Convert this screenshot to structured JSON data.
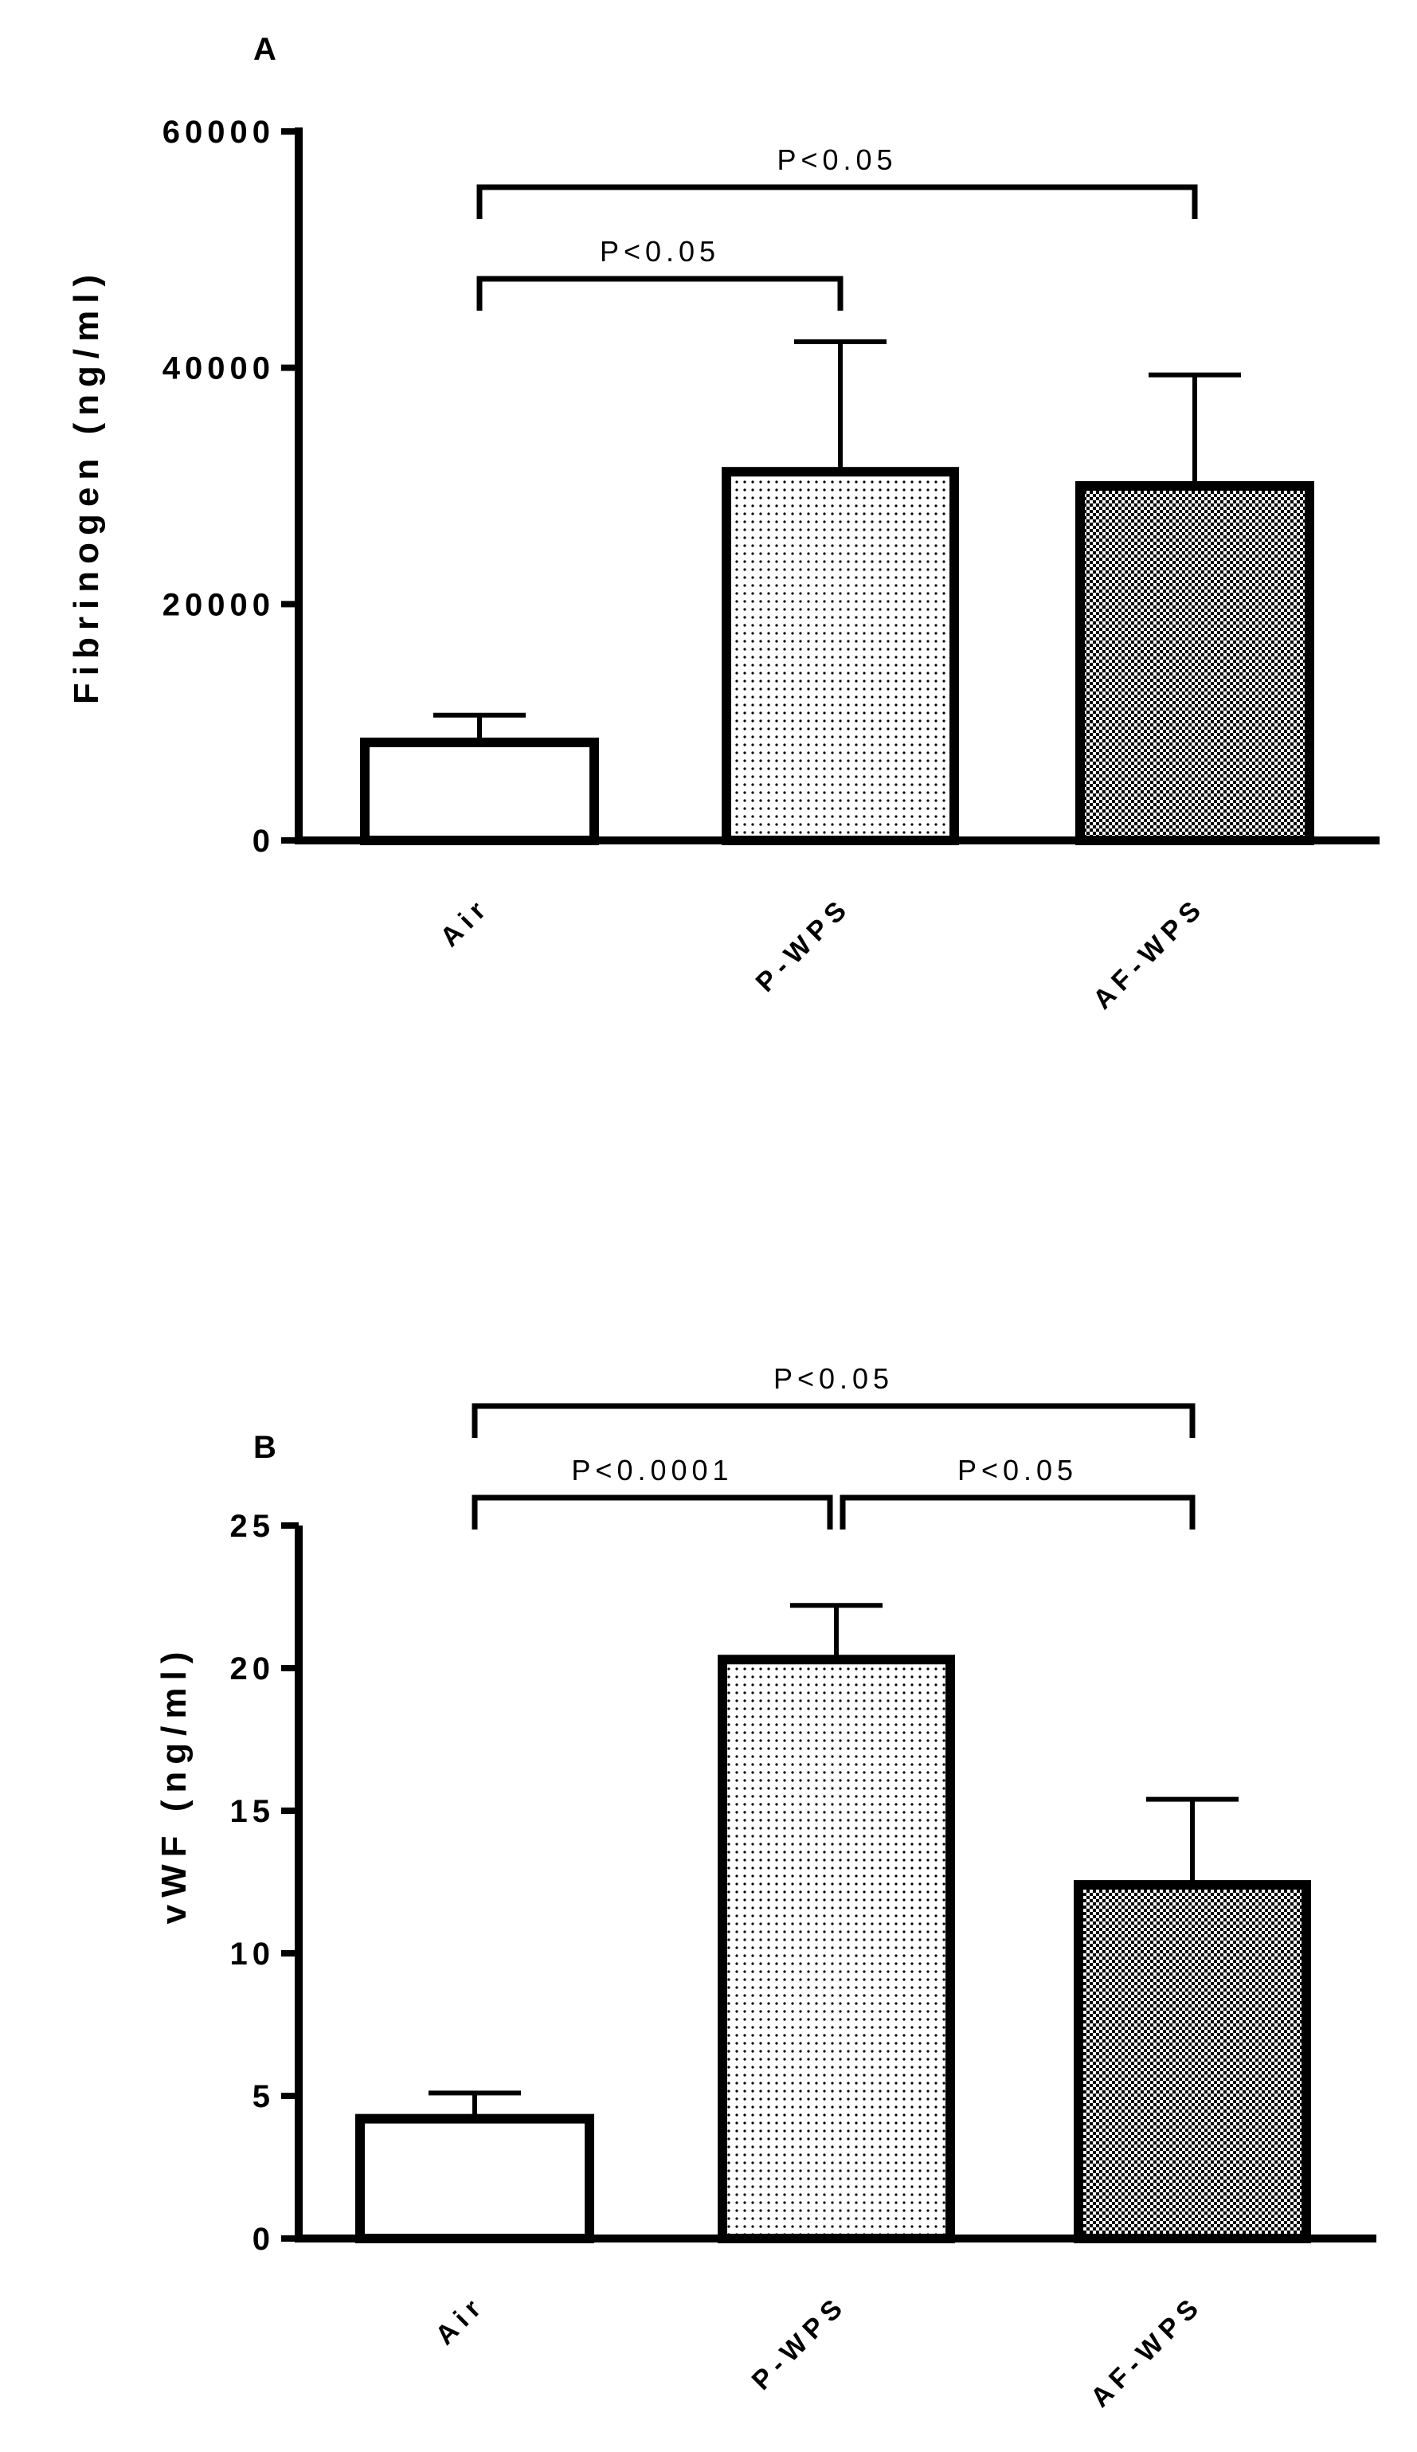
{
  "chart_data": [
    {
      "panel": "A",
      "type": "bar",
      "ylabel": "Fibrinogen (ng/ml)",
      "xlabel": "",
      "categories": [
        "Air",
        "P-WPS",
        "AF-WPS"
      ],
      "values": [
        8300,
        31200,
        30000
      ],
      "errors": [
        2300,
        11000,
        9400
      ],
      "ylim": [
        0,
        60000
      ],
      "yticks": [
        "0",
        "20000",
        "40000",
        "60000"
      ],
      "fills": [
        "none",
        "dots-sparse",
        "dots-dense"
      ],
      "significance": [
        {
          "from": 0,
          "to": 1,
          "label": "P<0.05"
        },
        {
          "from": 0,
          "to": 2,
          "label": "P<0.05"
        }
      ],
      "grid": false
    },
    {
      "panel": "B",
      "type": "bar",
      "ylabel": "vWF (ng/ml)",
      "xlabel": "",
      "categories": [
        "Air",
        "P-WPS",
        "AF-WPS"
      ],
      "values": [
        4.2,
        20.3,
        12.4
      ],
      "errors": [
        0.9,
        1.9,
        3.0
      ],
      "ylim": [
        0,
        25
      ],
      "yticks": [
        "0",
        "5",
        "10",
        "15",
        "20",
        "25"
      ],
      "fills": [
        "none",
        "dots-sparse",
        "dots-dense"
      ],
      "significance": [
        {
          "from": 0,
          "to": 1,
          "label": "P<0.0001"
        },
        {
          "from": 1,
          "to": 2,
          "label": "P<0.05"
        },
        {
          "from": 0,
          "to": 2,
          "label": "P<0.05"
        }
      ],
      "grid": false
    }
  ]
}
